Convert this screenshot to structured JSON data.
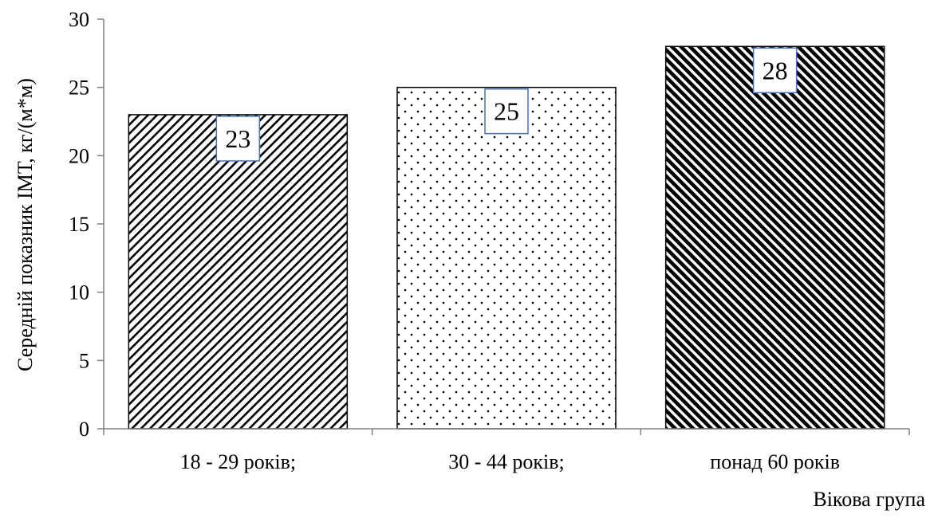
{
  "chart_data": {
    "type": "bar",
    "categories": [
      "18 - 29 років;",
      "30 - 44 років;",
      "понад 60 років"
    ],
    "values": [
      23,
      25,
      28
    ],
    "data_labels": [
      "23",
      "25",
      "28"
    ],
    "title": "",
    "xlabel": "Вікова група",
    "ylabel": "Середній показник ІМТ, кг/(м*м)",
    "ylim": [
      0,
      30
    ],
    "y_ticks": [
      0,
      5,
      10,
      15,
      20,
      25,
      30
    ],
    "grid": false,
    "legend": "none",
    "bar_patterns": [
      "diagonal-hatch-thin",
      "dots",
      "diagonal-hatch-bold"
    ],
    "colors": {
      "bar_outline": "#000000",
      "pattern_ink": "#000000",
      "label_box_border": "#4472c4",
      "axis": "#808080"
    }
  }
}
